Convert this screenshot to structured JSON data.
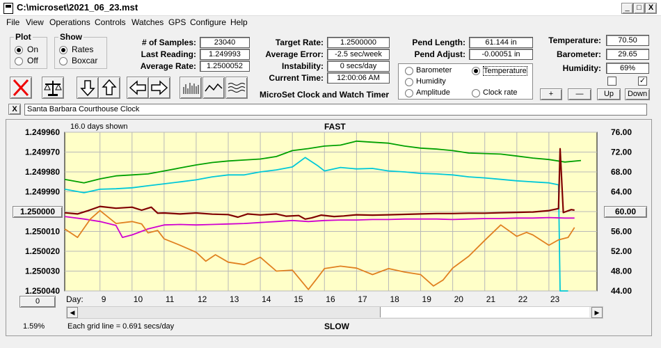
{
  "window": {
    "title": "C:\\microset\\2021_06_23.mst",
    "controls": [
      "_",
      "□",
      "X"
    ]
  },
  "menu": [
    "File",
    "View",
    "Operations",
    "Controls",
    "Watches",
    "GPS",
    "Configure",
    "Help"
  ],
  "plot": {
    "label": "Plot",
    "on": "On",
    "off": "Off",
    "selected": "On"
  },
  "show": {
    "label": "Show",
    "rates": "Rates",
    "boxcar": "Boxcar",
    "selected": "Rates"
  },
  "stats": {
    "samples_label": "# of Samples:",
    "samples": "23040",
    "last_label": "Last Reading:",
    "last": "1.249993",
    "avg_label": "Average Rate:",
    "avg": "1.2500052"
  },
  "rates": {
    "target_label": "Target Rate:",
    "target": "1.2500000",
    "error_label": "Average Error:",
    "error": "-2.5 sec/week",
    "instab_label": "Instability:",
    "instab": "0 secs/day",
    "time_label": "Current Time:",
    "time": "12:00:06 AM"
  },
  "pend": {
    "length_label": "Pend Length:",
    "length": "61.144 in",
    "adjust_label": "Pend Adjust:",
    "adjust": "-0.00051 in"
  },
  "env": {
    "temp_label": "Temperature:",
    "temp": "70.50",
    "baro_label": "Barometer:",
    "baro": "29.65",
    "hum_label": "Humidity:",
    "hum": "69%",
    "check2": "✓"
  },
  "channels": {
    "barometer": "Barometer",
    "temperature": "Temperature",
    "humidity": "Humidity",
    "amplitude": "Amplitude",
    "clockrate": "Clock rate",
    "selected": "Temperature",
    "colors": {
      "barometer": "#e08020",
      "temperature": "#00a000",
      "humidity": "#d000d0",
      "amplitude": "#00c8d8",
      "clockrate": "#800000"
    }
  },
  "app_label": "MicroSet Clock and Watch Timer",
  "adjust_buttons": [
    "+",
    "—",
    "Up",
    "Down"
  ],
  "clock_name": "Santa Barbara Courthouse Clock",
  "clock_close": "X",
  "graph": {
    "days_shown": "16.0 days shown",
    "fast": "FAST",
    "slow": "SLOW",
    "grid_note": "Each grid line = 0.691 secs/day",
    "percent": "1.59%",
    "day_label": "Day:",
    "left_button": "1.250000",
    "right_button": "60.00",
    "bottom_button": "0"
  },
  "chart_data": {
    "type": "line",
    "title": "",
    "xlabel": "Day:",
    "x_ticks": [
      "9",
      "10",
      "11",
      "12",
      "13",
      "14",
      "15",
      "16",
      "17",
      "18",
      "19",
      "20",
      "21",
      "22",
      "23"
    ],
    "y_left_ticks": [
      "1.249960",
      "1.249970",
      "1.249980",
      "1.249990",
      "1.250000",
      "1.250010",
      "1.250020",
      "1.250030",
      "1.250040"
    ],
    "y_left_lim": [
      1.24996,
      1.25004
    ],
    "y_right_ticks": [
      "76.00",
      "72.00",
      "68.00",
      "64.00",
      "60.00",
      "56.00",
      "52.00",
      "48.00",
      "44.00"
    ],
    "y_right_lim": [
      44,
      76
    ],
    "x_lim": [
      7.9,
      24.5
    ],
    "grid": true,
    "series": [
      {
        "channel": "temperature",
        "color": "#00a000",
        "x": [
          7.9,
          8.5,
          9,
          9.5,
          10,
          10.5,
          11,
          11.5,
          12,
          12.5,
          13,
          13.5,
          14,
          14.5,
          15,
          15.5,
          16,
          16.5,
          17,
          17.5,
          18,
          18.5,
          19,
          19.5,
          20,
          20.5,
          21,
          21.5,
          22,
          22.5,
          23,
          23.5,
          24
        ],
        "y": [
          66.5,
          65.8,
          66.6,
          67.2,
          67.4,
          67.6,
          68.2,
          68.8,
          69.4,
          69.9,
          70.2,
          70.4,
          70.6,
          71.1,
          72.3,
          72.7,
          73.2,
          73.4,
          74.2,
          74.0,
          73.8,
          73.2,
          72.8,
          72.6,
          72.3,
          71.8,
          71.7,
          71.6,
          71.2,
          70.8,
          70.5,
          70.0,
          70.3
        ]
      },
      {
        "channel": "amplitude",
        "color": "#00c8d8",
        "x": [
          7.9,
          8.5,
          9,
          9.5,
          10,
          10.5,
          11,
          11.5,
          12,
          12.5,
          13,
          13.5,
          14,
          14.5,
          15,
          15.4,
          15.8,
          16,
          16.5,
          17,
          17.5,
          18,
          18.5,
          19,
          19.5,
          20,
          20.5,
          21,
          21.5,
          22,
          22.5,
          23,
          23.3,
          23.35,
          23.6
        ],
        "y": [
          64.5,
          63.8,
          64.5,
          64.6,
          64.8,
          65.2,
          65.6,
          66.0,
          66.4,
          67.0,
          67.4,
          67.4,
          68.0,
          68.4,
          69.0,
          70.9,
          69.2,
          68.2,
          68.9,
          68.6,
          68.7,
          68.2,
          68.0,
          67.7,
          67.6,
          67.4,
          67.0,
          66.8,
          66.5,
          66.2,
          66.0,
          65.8,
          65.4,
          44.0,
          44.0
        ]
      },
      {
        "channel": "humidity",
        "color": "#d000d0",
        "x": [
          7.9,
          8.5,
          9,
          9.5,
          9.7,
          10,
          10.5,
          11,
          11.5,
          12,
          12.5,
          13,
          13.5,
          14,
          14.5,
          15,
          15.5,
          16,
          16.5,
          17,
          17.5,
          18,
          18.5,
          19,
          19.5,
          20,
          20.5,
          21,
          21.5,
          22,
          22.5,
          23,
          23.5,
          23.8
        ],
        "y": [
          59.0,
          58.5,
          58.0,
          57.2,
          54.8,
          55.3,
          56.5,
          57.3,
          57.4,
          57.3,
          57.4,
          57.5,
          57.6,
          57.8,
          58.0,
          58.2,
          58.0,
          58.2,
          58.3,
          58.3,
          58.4,
          58.4,
          58.5,
          58.5,
          58.5,
          58.4,
          58.5,
          58.6,
          58.6,
          58.7,
          58.7,
          58.8,
          58.7,
          58.7
        ]
      },
      {
        "channel": "barometer",
        "color": "#e08020",
        "x": [
          7.9,
          8.3,
          8.7,
          9,
          9.5,
          10,
          10.3,
          10.5,
          10.8,
          11,
          11.5,
          12,
          12.3,
          12.6,
          13,
          13.5,
          14,
          14.5,
          15,
          15.5,
          15.8,
          16,
          16.5,
          17,
          17.5,
          18,
          18.5,
          19,
          19.4,
          19.7,
          20,
          20.5,
          21,
          21.5,
          22,
          22.3,
          22.5,
          23,
          23.3,
          23.6,
          23.8
        ],
        "y": [
          56.5,
          54.8,
          58.5,
          60.2,
          57.6,
          58.0,
          57.5,
          55.7,
          56.2,
          54.5,
          53.2,
          51.8,
          50.0,
          51.3,
          49.8,
          49.3,
          50.8,
          48.0,
          48.2,
          44.3,
          46.8,
          48.5,
          49.0,
          48.6,
          47.3,
          48.5,
          47.8,
          47.3,
          45.0,
          46.2,
          48.6,
          51.0,
          54.2,
          57.3,
          55.0,
          55.8,
          55.3,
          53.2,
          54.3,
          54.8,
          56.8
        ]
      },
      {
        "channel": "clockrate",
        "color": "#800000",
        "x": [
          7.9,
          8.3,
          8.6,
          9,
          9.5,
          10,
          10.3,
          10.6,
          10.8,
          11,
          11.5,
          12,
          12.5,
          13,
          13.3,
          13.6,
          14,
          14.5,
          14.8,
          15.2,
          15.4,
          15.6,
          15.9,
          16.3,
          16.6,
          17,
          17.5,
          18,
          18.5,
          19,
          19.5,
          20,
          20.5,
          21,
          21.5,
          22,
          22.5,
          23,
          23.3,
          23.35,
          23.45,
          23.7,
          23.8
        ],
        "y": [
          1.2500006,
          1.2500012,
          1.2499997,
          1.2499974,
          1.2499983,
          1.2499978,
          1.2499993,
          1.2499978,
          1.2500008,
          1.2500007,
          1.2500012,
          1.2500007,
          1.2500013,
          1.2500015,
          1.2500028,
          1.2500012,
          1.2500017,
          1.2500012,
          1.2500023,
          1.250002,
          1.2500038,
          1.2500032,
          1.2500018,
          1.2500025,
          1.2500022,
          1.2500016,
          1.2500018,
          1.2500016,
          1.2500014,
          1.2500012,
          1.250001,
          1.250001,
          1.2500008,
          1.2500008,
          1.2500006,
          1.2500004,
          1.2500002,
          1.2499995,
          1.2499985,
          1.2499683,
          1.2500005,
          1.249999,
          1.2499993
        ]
      }
    ]
  }
}
